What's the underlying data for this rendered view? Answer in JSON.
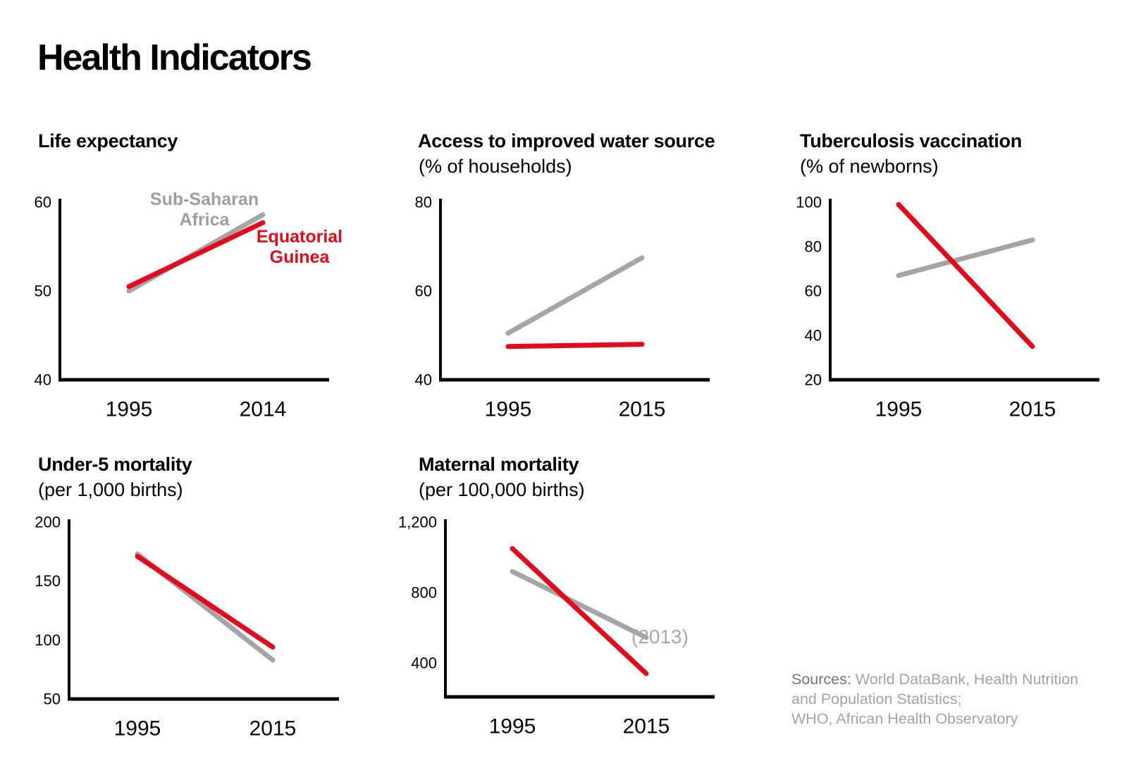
{
  "page_title": "Health Indicators",
  "colors": {
    "red": "#e30a1c",
    "gray": "#a5a5a5",
    "black": "#000000",
    "legend_gray_text": "#9e9e9e",
    "annotation_gray": "#a8a8a8",
    "sources_text": "#a3a3a3",
    "sources_label": "#757575"
  },
  "legend": {
    "gray_line1": "Sub-Saharan",
    "gray_line2": "Africa",
    "red_line1": "Equatorial",
    "red_line2": "Guinea"
  },
  "chart_data": [
    {
      "id": "life-expectancy",
      "type": "line",
      "title": "Life expectancy",
      "subtitle": "",
      "x": [
        1995,
        2014
      ],
      "x_labels": [
        "1995",
        "2014"
      ],
      "yticks": [
        40,
        50,
        60
      ],
      "ylim": [
        40,
        60
      ],
      "grid": false,
      "series": [
        {
          "name": "Sub-Saharan Africa",
          "color": "gray",
          "values": [
            50,
            58.6
          ]
        },
        {
          "name": "Equatorial Guinea",
          "color": "red",
          "values": [
            50.5,
            57.7
          ]
        }
      ]
    },
    {
      "id": "water-access",
      "type": "line",
      "title": "Access to improved water source",
      "subtitle": "(% of households)",
      "x": [
        1995,
        2015
      ],
      "x_labels": [
        "1995",
        "2015"
      ],
      "yticks": [
        40,
        60,
        80
      ],
      "ylim": [
        40,
        80
      ],
      "grid": false,
      "series": [
        {
          "name": "Sub-Saharan Africa",
          "color": "gray",
          "values": [
            50.5,
            67.5
          ]
        },
        {
          "name": "Equatorial Guinea",
          "color": "red",
          "values": [
            47.5,
            48
          ]
        }
      ]
    },
    {
      "id": "tb-vaccination",
      "type": "line",
      "title": "Tuberculosis vaccination",
      "subtitle": "(% of newborns)",
      "x": [
        1995,
        2015
      ],
      "x_labels": [
        "1995",
        "2015"
      ],
      "yticks": [
        20,
        40,
        60,
        80,
        100
      ],
      "ylim": [
        20,
        100
      ],
      "grid": false,
      "series": [
        {
          "name": "Sub-Saharan Africa",
          "color": "gray",
          "values": [
            67,
            83
          ]
        },
        {
          "name": "Equatorial Guinea",
          "color": "red",
          "values": [
            99,
            35
          ]
        }
      ]
    },
    {
      "id": "under5-mortality",
      "type": "line",
      "title": "Under-5 mortality",
      "subtitle": "(per 1,000 births)",
      "x": [
        1995,
        2015
      ],
      "x_labels": [
        "1995",
        "2015"
      ],
      "yticks": [
        50,
        100,
        150,
        200
      ],
      "ylim": [
        50,
        200
      ],
      "grid": false,
      "series": [
        {
          "name": "Sub-Saharan Africa",
          "color": "gray",
          "values": [
            173,
            83
          ]
        },
        {
          "name": "Equatorial Guinea",
          "color": "red",
          "values": [
            171,
            94
          ]
        }
      ]
    },
    {
      "id": "maternal-mortality",
      "type": "line",
      "title": "Maternal mortality",
      "subtitle": "(per 100,000 births)",
      "x": [
        1995,
        2015
      ],
      "x_labels": [
        "1995",
        "2015"
      ],
      "yticks": [
        400,
        800,
        1200
      ],
      "ylim": [
        200,
        1200
      ],
      "grid": false,
      "annotation": "(2013)",
      "series": [
        {
          "name": "Sub-Saharan Africa",
          "color": "gray",
          "values": [
            920,
            545
          ]
        },
        {
          "name": "Equatorial Guinea",
          "color": "red",
          "values": [
            1050,
            340
          ]
        }
      ]
    }
  ],
  "sources": {
    "label": "Sources:",
    "line1_rest": " World DataBank, Health Nutrition",
    "line2": "and Population Statistics;",
    "line3": "WHO, African Health Observatory"
  }
}
